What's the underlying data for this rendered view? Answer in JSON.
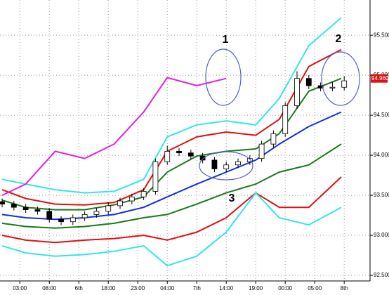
{
  "chart_data": {
    "type": "candlestick",
    "grid": true,
    "xlim": [
      -0.36,
      62.38
    ],
    "ylim": [
      92.43,
      95.94
    ],
    "yticks": [
      {
        "value": 92.5,
        "label": "92.500"
      },
      {
        "value": 93,
        "label": "93.000"
      },
      {
        "value": 93.5,
        "label": "93.500"
      },
      {
        "value": 94,
        "label": "94.000"
      },
      {
        "value": 94.5,
        "label": "94.500"
      },
      {
        "value": 95,
        "label": "95.000"
      },
      {
        "value": 95.5,
        "label": "95.500"
      }
    ],
    "xticks": [
      {
        "value": 3,
        "label": "03:00"
      },
      {
        "value": 8,
        "label": "08:00"
      },
      {
        "value": 13,
        "label": "6th"
      },
      {
        "value": 18,
        "label": "18:00"
      },
      {
        "value": 23,
        "label": "23:00"
      },
      {
        "value": 28,
        "label": "04:00"
      },
      {
        "value": 33,
        "label": "7th"
      },
      {
        "value": 38,
        "label": "14:00"
      },
      {
        "value": 43,
        "label": "19:00"
      },
      {
        "value": 48,
        "label": "00:00"
      },
      {
        "value": 53,
        "label": "05:00"
      },
      {
        "value": 58,
        "label": "8th"
      }
    ],
    "x": [
      0,
      2,
      4,
      6,
      8,
      10,
      12,
      14,
      16,
      18,
      20,
      22,
      24,
      26,
      28,
      30,
      32,
      34,
      36,
      38,
      40,
      42,
      44,
      46,
      48,
      50,
      52,
      54,
      56,
      58
    ],
    "open": [
      93.42,
      93.39,
      93.35,
      93.32,
      93.3,
      93.2,
      93.17,
      93.22,
      93.26,
      93.3,
      93.37,
      93.43,
      93.48,
      93.55,
      93.92,
      94.05,
      94.03,
      93.99,
      93.94,
      93.83,
      93.88,
      93.92,
      93.96,
      94.14,
      94.27,
      94.62,
      94.96,
      94.87,
      94.84,
      94.85
    ],
    "high": [
      93.46,
      93.43,
      93.39,
      93.36,
      93.34,
      93.24,
      93.26,
      93.3,
      93.34,
      93.41,
      93.47,
      93.52,
      93.59,
      93.96,
      94.12,
      94.09,
      94.07,
      94.03,
      93.98,
      93.92,
      93.96,
      94.0,
      94.18,
      94.31,
      94.66,
      95.05,
      95.0,
      94.91,
      94.92,
      94.99
    ],
    "low": [
      93.35,
      93.31,
      93.28,
      93.26,
      93.16,
      93.13,
      93.13,
      93.18,
      93.22,
      93.26,
      93.33,
      93.39,
      93.44,
      93.51,
      93.88,
      93.99,
      93.95,
      93.9,
      93.79,
      93.79,
      93.84,
      93.88,
      93.92,
      94.1,
      94.23,
      94.58,
      94.83,
      94.8,
      94.8,
      94.81
    ],
    "close": [
      93.39,
      93.35,
      93.32,
      93.3,
      93.2,
      93.17,
      93.22,
      93.26,
      93.3,
      93.37,
      93.43,
      93.48,
      93.55,
      93.92,
      94.05,
      94.03,
      93.99,
      93.94,
      93.83,
      93.88,
      93.92,
      93.96,
      94.14,
      94.27,
      94.62,
      94.96,
      94.87,
      94.84,
      94.85,
      94.93
    ],
    "up_color": "#ffffff",
    "down_color": "#000000",
    "overlay_x": [
      0,
      4,
      9,
      14,
      19,
      24,
      28,
      33,
      38,
      43,
      47,
      52,
      57.5
    ],
    "overlays": [
      {
        "color": "#33e6e6",
        "values": [
          93.7,
          93.64,
          93.57,
          93.53,
          93.55,
          93.7,
          94.23,
          94.38,
          94.43,
          94.38,
          94.71,
          95.37,
          95.72
        ]
      },
      {
        "color": "#e01010",
        "values": [
          93.57,
          93.46,
          93.39,
          93.38,
          93.41,
          93.57,
          94.05,
          94.23,
          94.29,
          94.25,
          94.45,
          95.11,
          95.32
        ]
      },
      {
        "color": "#1a7a1a",
        "values": [
          93.44,
          93.35,
          93.32,
          93.32,
          93.38,
          93.48,
          93.79,
          93.99,
          94.05,
          94.08,
          94.27,
          94.8,
          94.96
        ]
      },
      {
        "color": "#1030e0",
        "values": [
          93.26,
          93.22,
          93.2,
          93.22,
          93.26,
          93.35,
          93.48,
          93.64,
          93.79,
          93.94,
          94.14,
          94.36,
          94.54
        ]
      },
      {
        "color": "#1a7a1a",
        "values": [
          93.15,
          93.11,
          93.09,
          93.11,
          93.15,
          93.22,
          93.26,
          93.39,
          93.53,
          93.64,
          93.79,
          93.88,
          94.14
        ]
      },
      {
        "color": "#e01010",
        "values": [
          93.0,
          92.94,
          92.91,
          92.94,
          92.96,
          93.0,
          92.94,
          93.04,
          93.22,
          93.53,
          93.35,
          93.35,
          93.73
        ]
      },
      {
        "color": "#33e6e6",
        "values": [
          92.87,
          92.78,
          92.74,
          92.76,
          92.8,
          92.87,
          92.62,
          92.74,
          93.04,
          93.53,
          93.22,
          93.13,
          93.35
        ]
      },
      {
        "color": "#e020e0",
        "values": [
          93.5,
          93.64,
          94.05,
          93.96,
          94.14,
          94.54,
          94.97,
          94.87,
          94.96,
          null,
          null,
          null,
          null
        ]
      }
    ],
    "last_price": {
      "value": 94.96,
      "label": "94.960"
    },
    "annotations": [
      "1",
      "2",
      "3"
    ]
  }
}
